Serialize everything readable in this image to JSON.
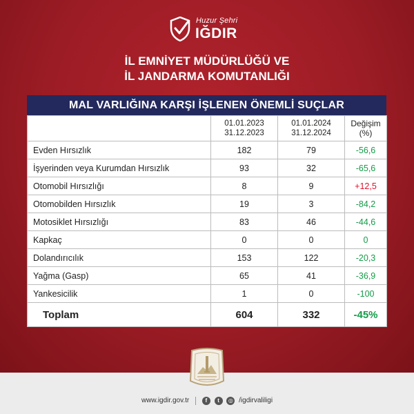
{
  "brand": {
    "small": "Huzur Şehri",
    "big": "IĞDIR"
  },
  "heading": {
    "line1": "İL EMNİYET MÜDÜRLÜĞÜ VE",
    "line2": "İL JANDARMA KOMUTANLIĞI"
  },
  "table": {
    "title": "MAL VARLIĞINA KARŞI İŞLENEN ÖNEMLİ SUÇLAR",
    "headers": {
      "period1_start": "01.01.2023",
      "period1_dash": "-",
      "period1_end": "31.12.2023",
      "period2_start": "01.01.2024",
      "period2_dash": "-",
      "period2_end": "31.12.2024",
      "change": "Değişim (%)"
    },
    "rows": [
      {
        "name": "Evden Hırsızlık",
        "y2023": "182",
        "y2024": "79",
        "change": "-56,6"
      },
      {
        "name": "İşyerinden veya Kurumdan Hırsızlık",
        "y2023": "93",
        "y2024": "32",
        "change": "-65,6"
      },
      {
        "name": "Otomobil Hırsızlığı",
        "y2023": "8",
        "y2024": "9",
        "change": "+12,5"
      },
      {
        "name": "Otomobilden Hırsızlık",
        "y2023": "19",
        "y2024": "3",
        "change": "-84,2"
      },
      {
        "name": "Motosiklet Hırsızlığı",
        "y2023": "83",
        "y2024": "46",
        "change": "-44,6"
      },
      {
        "name": "Kapkaç",
        "y2023": "0",
        "y2024": "0",
        "change": "0"
      },
      {
        "name": "Dolandırıcılık",
        "y2023": "153",
        "y2024": "122",
        "change": "-20,3"
      },
      {
        "name": "Yağma (Gasp)",
        "y2023": "65",
        "y2024": "41",
        "change": "-36,9"
      },
      {
        "name": "Yankesicilik",
        "y2023": "1",
        "y2024": "0",
        "change": "-100"
      }
    ],
    "total": {
      "name": "Toplam",
      "y2023": "604",
      "y2024": "332",
      "change": "-45%"
    }
  },
  "emblem": {
    "line1": "TÜRKİYE CUMHURİYETİ",
    "line2": "IĞDIR VALİLİĞİ"
  },
  "footer": {
    "website": "www.igdir.gov.tr",
    "handle": "/igdirvaliligi"
  },
  "colors": {
    "background_red": "#9c1c25",
    "table_title_navy": "#23295c",
    "increase_red": "#e0102b",
    "decrease_green": "#149b48"
  }
}
